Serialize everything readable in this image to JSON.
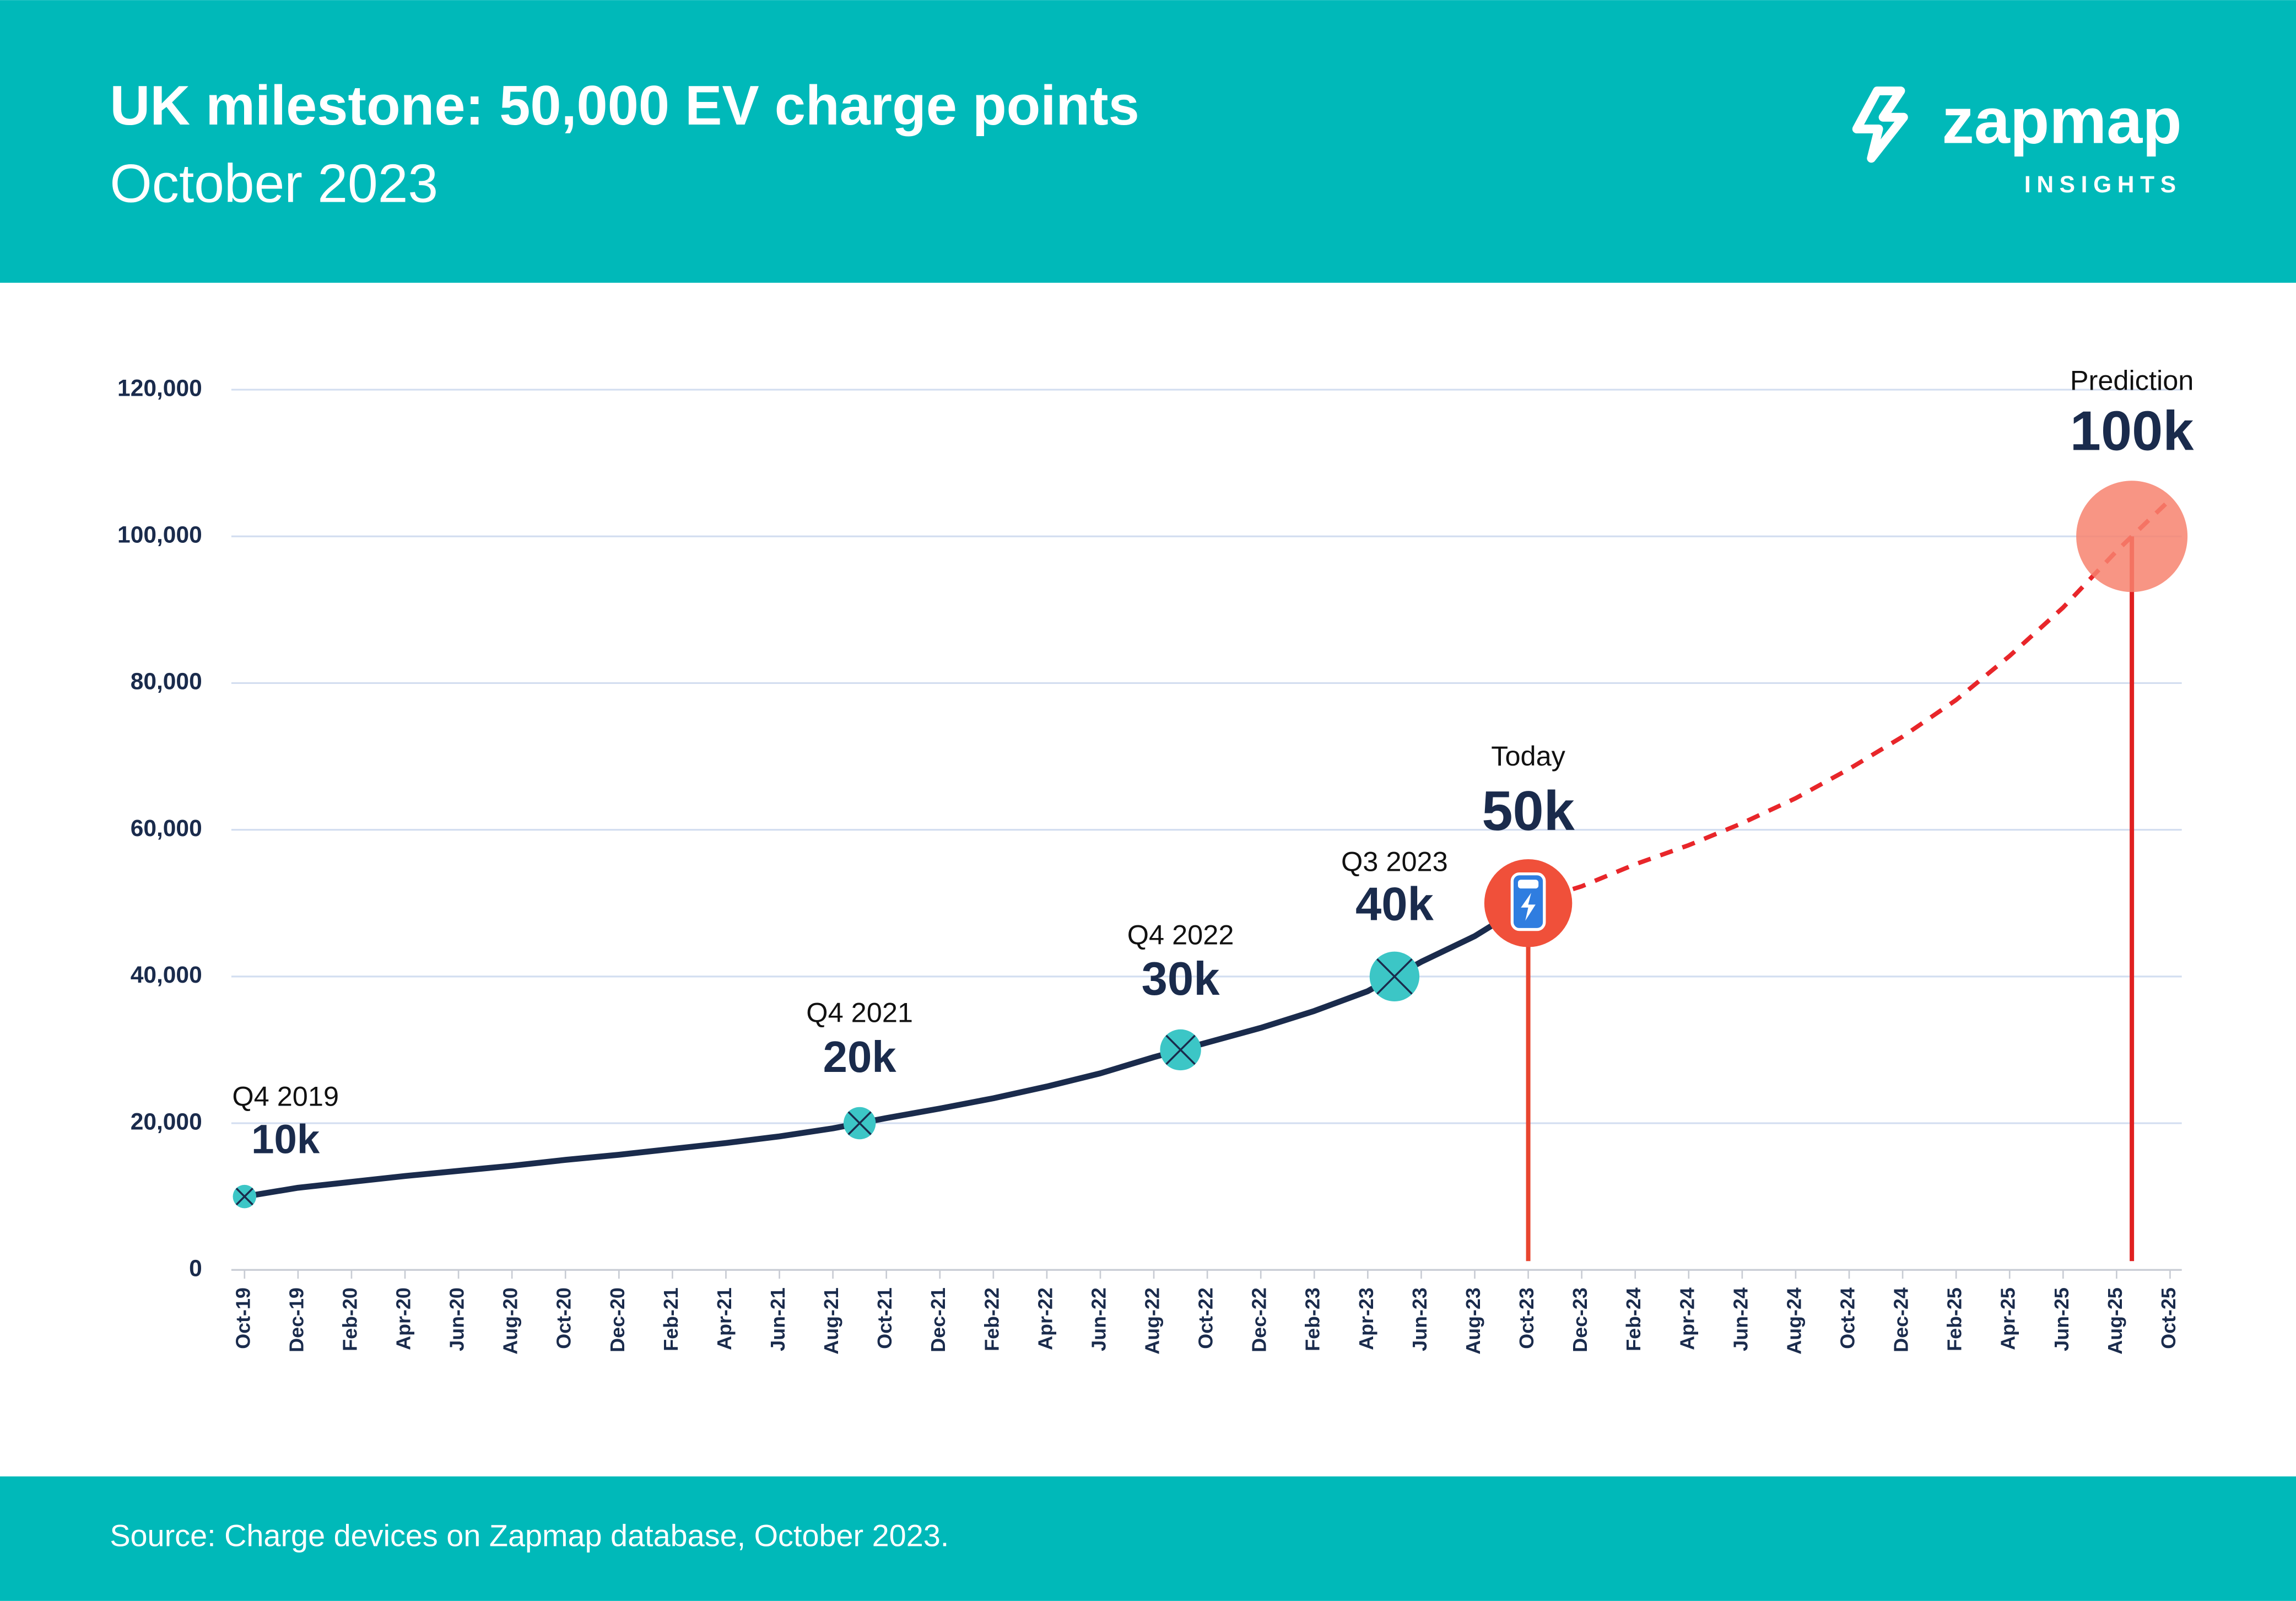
{
  "chart_data": {
    "type": "line",
    "title": "UK milestone: 50,000 EV charge points",
    "subtitle": "October 2023",
    "brand": "zapmap",
    "brand_tagline": "INSIGHTS",
    "source": "Source: Charge devices on Zapmap database, October 2023.",
    "categories": [
      "Oct-19",
      "Dec-19",
      "Feb-20",
      "Apr-20",
      "Jun-20",
      "Aug-20",
      "Oct-20",
      "Dec-20",
      "Feb-21",
      "Apr-21",
      "Jun-21",
      "Aug-21",
      "Oct-21",
      "Dec-21",
      "Feb-22",
      "Apr-22",
      "Jun-22",
      "Aug-22",
      "Oct-22",
      "Dec-22",
      "Feb-23",
      "Apr-23",
      "Jun-23",
      "Aug-23",
      "Oct-23",
      "Dec-23",
      "Feb-24",
      "Apr-24",
      "Jun-24",
      "Aug-24",
      "Oct-24",
      "Dec-24",
      "Feb-25",
      "Apr-25",
      "Jun-25",
      "Aug-25",
      "Oct-25"
    ],
    "series": [
      {
        "color": "#1a2b4c",
        "dashed": false,
        "values": [
          10000,
          11200,
          12000,
          12800,
          13500,
          14200,
          15000,
          15700,
          16500,
          17300,
          18200,
          19300,
          20700,
          22000,
          23400,
          25000,
          26800,
          29000,
          31000,
          33000,
          35300,
          38000,
          42000,
          45500,
          50000,
          null,
          null,
          null,
          null,
          null,
          null,
          null,
          null,
          null,
          null,
          null,
          null
        ]
      },
      {
        "color": "#e8262a",
        "dashed": true,
        "values": [
          null,
          null,
          null,
          null,
          null,
          null,
          null,
          null,
          null,
          null,
          null,
          null,
          null,
          null,
          null,
          null,
          null,
          null,
          null,
          null,
          null,
          null,
          null,
          null,
          50000,
          52300,
          55300,
          57900,
          60900,
          64300,
          68300,
          72700,
          77700,
          83700,
          90300,
          98000,
          105000
        ]
      }
    ],
    "milestones": [
      {
        "text": "Q4 2019",
        "value": 10000,
        "value_label": "10k"
      },
      {
        "text": "Q4 2021",
        "value": 20000,
        "value_label": "20k"
      },
      {
        "text": "Q4 2022",
        "value": 30000,
        "value_label": "30k"
      },
      {
        "text": "Q3 2023",
        "value": 40000,
        "value_label": "40k"
      },
      {
        "text": "Today",
        "value": 50000,
        "value_label": "50k"
      },
      {
        "text": "Prediction",
        "value": 100000,
        "value_label": "100k"
      }
    ],
    "ylim": [
      0,
      120000
    ],
    "yticks": [
      0,
      {
        "value": 20000,
        "label": "20,000"
      },
      {
        "value": 40000,
        "label": "40,000"
      },
      {
        "value": 60000,
        "label": "60,000"
      },
      {
        "value": 80000,
        "label": "80,000"
      },
      {
        "value": 100000,
        "label": "100,000"
      },
      {
        "value": 120000,
        "label": "120,000"
      }
    ],
    "grid": true
  }
}
